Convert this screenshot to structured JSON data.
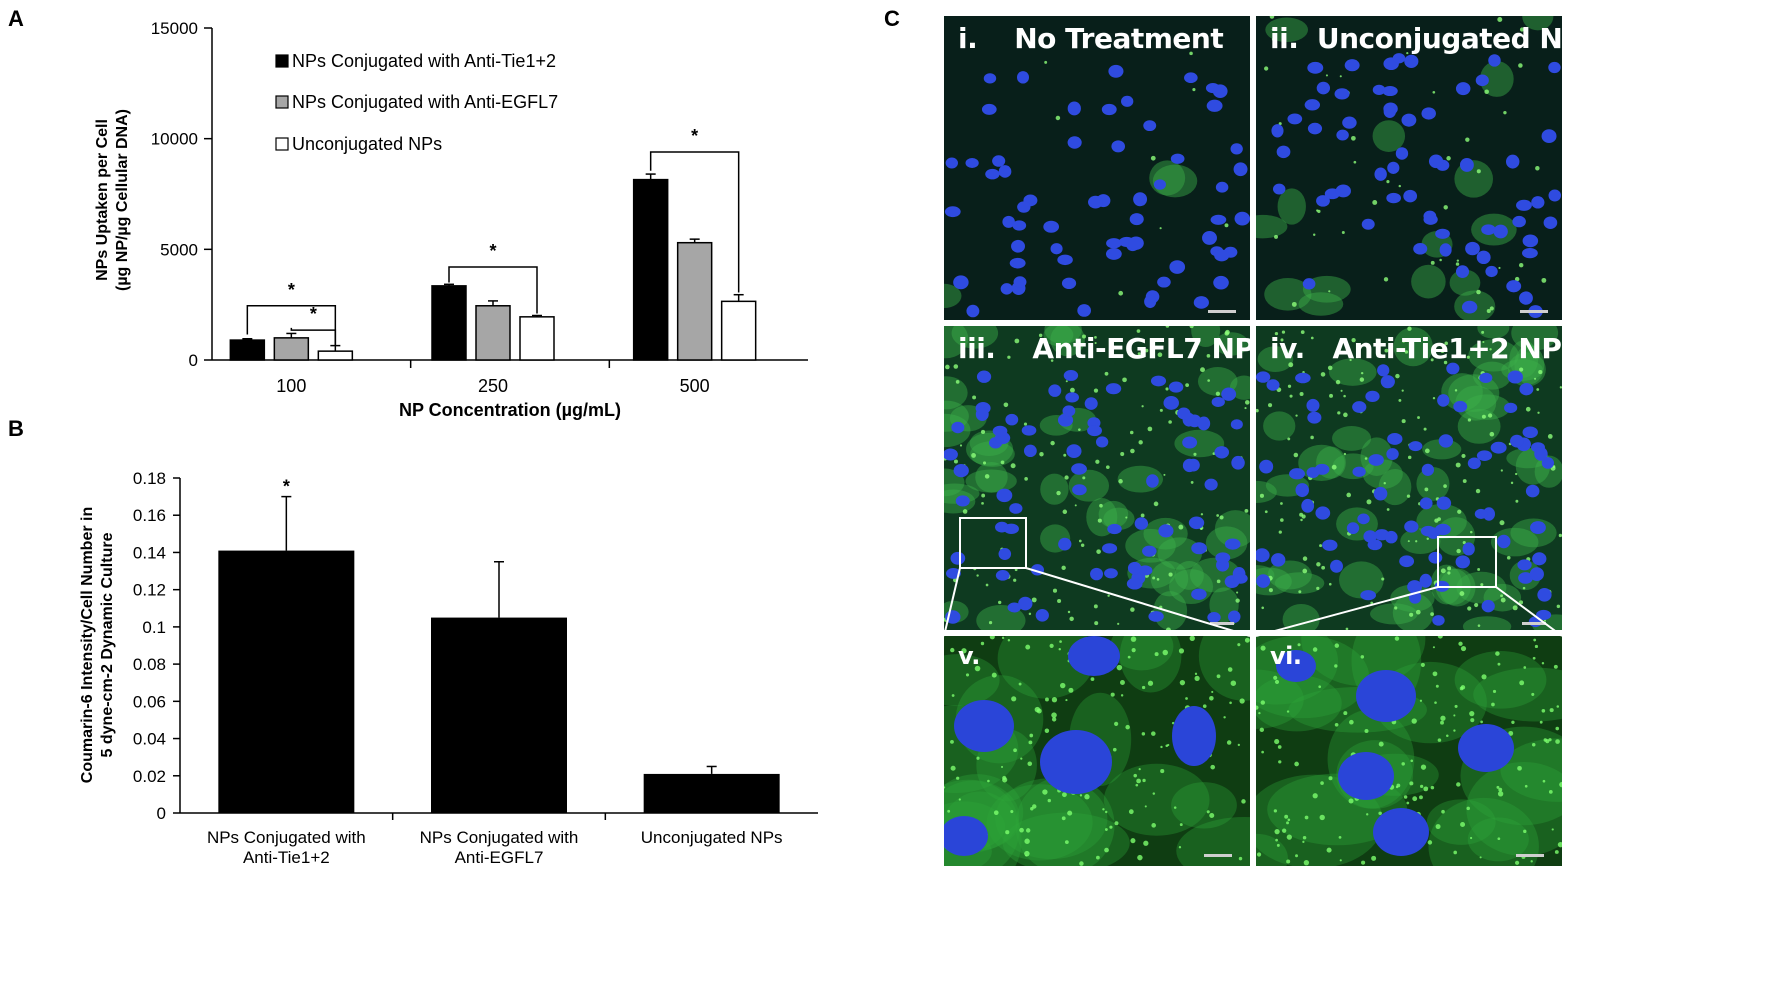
{
  "panels": {
    "a": "A",
    "b": "B",
    "c": "C"
  },
  "chart_data": [
    {
      "type": "bar",
      "panel": "A",
      "categories": [
        "100",
        "250",
        "500"
      ],
      "series": [
        {
          "name": "NPs Conjugated with Anti-Tie1+2",
          "color": "#000000",
          "values": [
            900,
            3350,
            8150
          ],
          "errors": [
            60,
            70,
            250
          ]
        },
        {
          "name": "NPs Conjugated with Anti-EGFL7",
          "color": "#a6a6a6",
          "values": [
            1000,
            2450,
            5300
          ],
          "errors": [
            200,
            220,
            160
          ]
        },
        {
          "name": "Unconjugated NPs",
          "color": "#ffffff",
          "values": [
            400,
            1950,
            2650
          ],
          "errors": [
            250,
            60,
            300
          ]
        }
      ],
      "xlabel": "NP Concentration (µg/mL)",
      "ylabel_line1": "NPs Uptaken per Cell",
      "ylabel_line2": "(µg NP/µg Cellular DNA)",
      "ylim": [
        0,
        15000
      ],
      "yticks": [
        "0",
        "5000",
        "10000",
        "15000"
      ],
      "legend_placement": "top-left",
      "significance": "*"
    },
    {
      "type": "bar",
      "panel": "B",
      "categories": [
        [
          "NPs Conjugated with",
          "Anti-Tie1+2"
        ],
        [
          "NPs Conjugated with",
          "Anti-EGFL7"
        ],
        [
          "Unconjugated NPs"
        ]
      ],
      "values": [
        0.141,
        0.105,
        0.021
      ],
      "errors": [
        0.029,
        0.03,
        0.004
      ],
      "ylabel_line1": "Coumarin-6 Intensity/Cell Number in",
      "ylabel_line2": "5 dyne-cm-2 Dynamic Culture",
      "ylim": [
        0,
        0.18
      ],
      "yticks": [
        "0",
        "0.02",
        "0.04",
        "0.06",
        "0.08",
        "0.1",
        "0.12",
        "0.14",
        "0.16",
        "0.18"
      ],
      "significance": "*"
    }
  ],
  "micrographs": [
    {
      "label": "i.    No Treatment"
    },
    {
      "label": "ii.  Unconjugated NP"
    },
    {
      "label": "iii.    Anti-EGFL7 NP"
    },
    {
      "label": "iv.   Anti-Tie1+2 NP"
    },
    {
      "label": "v."
    },
    {
      "label": "vi."
    }
  ]
}
